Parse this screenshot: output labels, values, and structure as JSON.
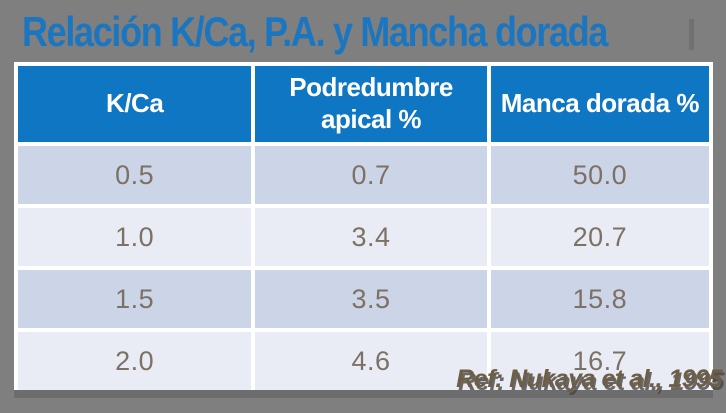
{
  "title": "Relación K/Ca, P.A. y Mancha dorada",
  "reference": "Ref: Nukaya et al., 1995",
  "colors": {
    "background": "#7f7f7f",
    "title_blue": "#1b76c1",
    "header_blue": "#0e76c2",
    "row_dark": "#ccd5e7",
    "row_light": "#e9ecf5",
    "cell_text": "#7c7164",
    "reference_text": "#6d5e45",
    "grid_white": "#ffffff",
    "table_shadow": "#6d6d6d"
  },
  "chart_data": {
    "type": "table",
    "title": "Relación K/Ca, P.A. y Mancha dorada",
    "columns": [
      "K/Ca",
      "Podredumbre apical %",
      "Manca dorada %"
    ],
    "rows": [
      [
        "0.5",
        "0.7",
        "50.0"
      ],
      [
        "1.0",
        "3.4",
        "20.7"
      ],
      [
        "1.5",
        "3.5",
        "15.8"
      ],
      [
        "2.0",
        "4.6",
        "16.7"
      ]
    ],
    "annotation": "Ref: Nukaya et al., 1995",
    "layout": "banded rows, blue header, white gridlines, gray slide background"
  }
}
